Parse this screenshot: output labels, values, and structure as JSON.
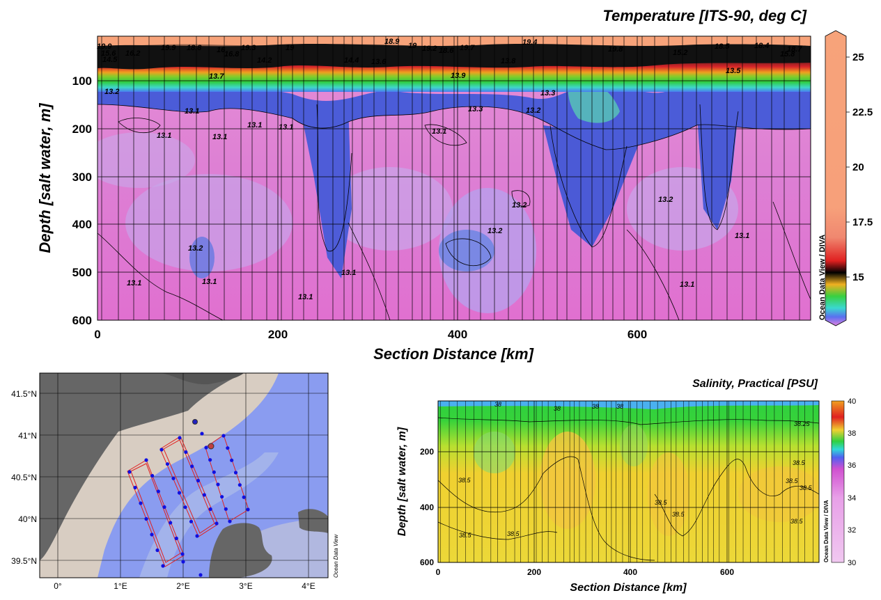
{
  "temperature_panel": {
    "title": "Temperature [ITS-90, deg C]",
    "xlabel": "Section Distance [km]",
    "ylabel": "Depth [salt water, m]",
    "x_ticks": [
      "0",
      "200",
      "400",
      "600"
    ],
    "y_ticks": [
      "100",
      "200",
      "300",
      "400",
      "500",
      "600"
    ],
    "colorbar_ticks": [
      "25",
      "22.5",
      "20",
      "17.5",
      "15"
    ],
    "watermark": "Ocean Data View / DIVA",
    "contour_labels": [
      "19.9",
      "19.9",
      "18.8",
      "16",
      "19.3",
      "19",
      "18.9",
      "19",
      "19.2",
      "18.6",
      "19.7",
      "19.4",
      "19.8",
      "18.5",
      "18.4",
      "18.7",
      "16.2",
      "15.6",
      "16.8",
      "15.2",
      "15.8",
      "14.5",
      "14.4",
      "14.2",
      "13.7",
      "13.6",
      "13.8",
      "13.9",
      "13.5",
      "13.3",
      "13.3",
      "13.2",
      "13.2",
      "13.1",
      "13.1",
      "13.1",
      "13.1",
      "13.1",
      "13.1",
      "13.2",
      "13.2",
      "13.2",
      "13.2",
      "13.1",
      "13.1",
      "13.1",
      "13.1",
      "13.1",
      "13.1"
    ]
  },
  "map_panel": {
    "lat_ticks": [
      "41.5°N",
      "41°N",
      "40.5°N",
      "40°N",
      "39.5°N"
    ],
    "lon_ticks": [
      "0°",
      "1°E",
      "2°E",
      "3°E",
      "4°E"
    ],
    "watermark": "Ocean Data View"
  },
  "salinity_panel": {
    "title": "Salinity, Practical [PSU]",
    "xlabel": "Section Distance [km]",
    "ylabel": "Depth [salt water, m]",
    "x_ticks": [
      "0",
      "200",
      "400",
      "600"
    ],
    "y_ticks": [
      "200",
      "400",
      "600"
    ],
    "colorbar_ticks": [
      "40",
      "38",
      "36",
      "34",
      "32",
      "30"
    ],
    "watermark": "Ocean Data View / DIVA",
    "contour_labels": [
      "38",
      "38",
      "38",
      "38",
      "38.25",
      "38.5",
      "38.5",
      "38.5",
      "38.5",
      "38.5",
      "38.5",
      "38.5",
      "38.5",
      "38.5"
    ]
  },
  "chart_data": [
    {
      "type": "heatmap",
      "title": "Temperature [ITS-90, deg C]",
      "xlabel": "Section Distance [km]",
      "ylabel": "Depth [salt water, m]",
      "xlim": [
        0,
        790
      ],
      "ylim": [
        600,
        10
      ],
      "colorbar_range": [
        12.5,
        26
      ],
      "contour_levels": [
        13.1,
        13.2,
        13.3,
        13.5,
        13.6,
        13.7,
        13.8,
        13.9,
        14.2,
        14.4,
        14.5,
        15.2,
        15.6,
        15.8,
        16,
        16.2,
        16.8,
        18.4,
        18.5,
        18.6,
        18.7,
        18.8,
        18.9,
        19,
        19.2,
        19.3,
        19.4,
        19.7,
        19.8,
        19.9
      ]
    },
    {
      "type": "scatter",
      "xlabel": "Longitude",
      "ylabel": "Latitude",
      "xlim": [
        -0.3,
        4.3
      ],
      "ylim": [
        39.25,
        41.8
      ],
      "station_count": 43
    },
    {
      "type": "heatmap",
      "title": "Salinity, Practical [PSU]",
      "xlabel": "Section Distance [km]",
      "ylabel": "Depth [salt water, m]",
      "xlim": [
        0,
        790
      ],
      "ylim": [
        600,
        10
      ],
      "colorbar_range": [
        30,
        40
      ],
      "contour_levels": [
        38,
        38.25,
        38.5
      ]
    }
  ]
}
